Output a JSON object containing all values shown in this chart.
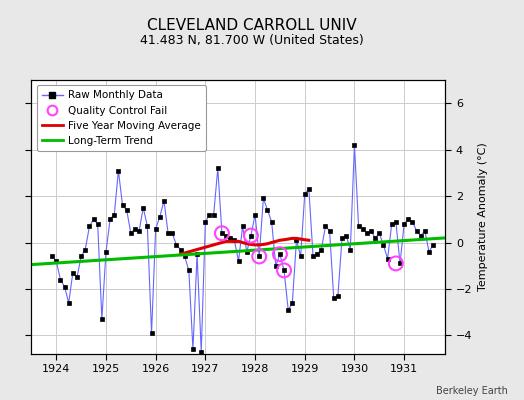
{
  "title": "CLEVELAND CARROLL UNIV",
  "subtitle": "41.483 N, 81.700 W (United States)",
  "ylabel": "Temperature Anomaly (°C)",
  "watermark": "Berkeley Earth",
  "bg_color": "#e8e8e8",
  "plot_bg_color": "#ffffff",
  "ylim": [
    -4.8,
    7.0
  ],
  "yticks": [
    -4,
    -2,
    0,
    2,
    4,
    6
  ],
  "xlim": [
    1923.5,
    1931.83
  ],
  "xticks": [
    1924,
    1925,
    1926,
    1927,
    1928,
    1929,
    1930,
    1931
  ],
  "raw_x": [
    1923.917,
    1924.0,
    1924.083,
    1924.167,
    1924.25,
    1924.333,
    1924.417,
    1924.5,
    1924.583,
    1924.667,
    1924.75,
    1924.833,
    1924.917,
    1925.0,
    1925.083,
    1925.167,
    1925.25,
    1925.333,
    1925.417,
    1925.5,
    1925.583,
    1925.667,
    1925.75,
    1925.833,
    1925.917,
    1926.0,
    1926.083,
    1926.167,
    1926.25,
    1926.333,
    1926.417,
    1926.5,
    1926.583,
    1926.667,
    1926.75,
    1926.833,
    1926.917,
    1927.0,
    1927.083,
    1927.167,
    1927.25,
    1927.333,
    1927.417,
    1927.5,
    1927.583,
    1927.667,
    1927.75,
    1927.833,
    1927.917,
    1928.0,
    1928.083,
    1928.167,
    1928.25,
    1928.333,
    1928.417,
    1928.5,
    1928.583,
    1928.667,
    1928.75,
    1928.833,
    1928.917,
    1929.0,
    1929.083,
    1929.167,
    1929.25,
    1929.333,
    1929.417,
    1929.5,
    1929.583,
    1929.667,
    1929.75,
    1929.833,
    1929.917,
    1930.0,
    1930.083,
    1930.167,
    1930.25,
    1930.333,
    1930.417,
    1930.5,
    1930.583,
    1930.667,
    1930.75,
    1930.833,
    1930.917,
    1931.0,
    1931.083,
    1931.167,
    1931.25,
    1931.333,
    1931.417,
    1931.5,
    1931.583
  ],
  "raw_y": [
    -0.6,
    -0.8,
    -1.6,
    -1.9,
    -2.6,
    -1.3,
    -1.5,
    -0.6,
    -0.3,
    0.7,
    1.0,
    0.8,
    -3.3,
    -0.4,
    1.0,
    1.2,
    3.1,
    1.6,
    1.4,
    0.4,
    0.6,
    0.5,
    1.5,
    0.7,
    -3.9,
    0.6,
    1.1,
    1.8,
    0.4,
    0.4,
    -0.1,
    -0.3,
    -0.6,
    -1.2,
    -4.6,
    -0.5,
    -4.7,
    0.9,
    1.2,
    1.2,
    3.2,
    0.4,
    0.3,
    0.2,
    0.1,
    -0.8,
    0.7,
    -0.4,
    0.3,
    1.2,
    -0.6,
    1.9,
    1.4,
    0.9,
    -1.0,
    -0.5,
    -1.2,
    -2.9,
    -2.6,
    0.1,
    -0.6,
    2.1,
    2.3,
    -0.6,
    -0.5,
    -0.3,
    0.7,
    0.5,
    -2.4,
    -2.3,
    0.2,
    0.3,
    -0.3,
    4.2,
    0.7,
    0.6,
    0.4,
    0.5,
    0.2,
    0.4,
    -0.1,
    -0.7,
    0.8,
    0.9,
    -0.9,
    0.8,
    1.0,
    0.9,
    0.5,
    0.3,
    0.5,
    -0.4,
    -0.1
  ],
  "qc_fail_x": [
    1927.333,
    1927.917,
    1928.083,
    1928.5,
    1928.583,
    1930.833
  ],
  "qc_fail_y": [
    0.4,
    0.3,
    -0.6,
    -0.5,
    -1.2,
    -0.9
  ],
  "moving_avg_x": [
    1926.5,
    1926.583,
    1926.667,
    1926.75,
    1926.833,
    1926.917,
    1927.0,
    1927.083,
    1927.167,
    1927.25,
    1927.333,
    1927.417,
    1927.5,
    1927.583,
    1927.667,
    1927.75,
    1927.833,
    1927.917,
    1928.0,
    1928.083,
    1928.167,
    1928.25,
    1928.333,
    1928.417,
    1928.5,
    1928.583,
    1928.667,
    1928.75,
    1928.833,
    1928.917,
    1929.0,
    1929.083
  ],
  "moving_avg_y": [
    -0.5,
    -0.45,
    -0.4,
    -0.35,
    -0.3,
    -0.25,
    -0.2,
    -0.15,
    -0.1,
    -0.05,
    0.0,
    0.05,
    0.05,
    0.05,
    0.05,
    0.0,
    -0.05,
    -0.08,
    -0.1,
    -0.1,
    -0.08,
    -0.05,
    0.0,
    0.05,
    0.1,
    0.12,
    0.15,
    0.18,
    0.18,
    0.15,
    0.12,
    0.1
  ],
  "trend_x": [
    1923.5,
    1931.83
  ],
  "trend_y": [
    -0.95,
    0.2
  ],
  "raw_line_color": "#6666ff",
  "raw_marker_color": "#000000",
  "qc_color": "#ff44ff",
  "moving_avg_color": "#dd0000",
  "trend_color": "#00bb00",
  "grid_color": "#cccccc",
  "title_fontsize": 11,
  "subtitle_fontsize": 9,
  "tick_fontsize": 8,
  "legend_fontsize": 7.5,
  "ylabel_fontsize": 8
}
